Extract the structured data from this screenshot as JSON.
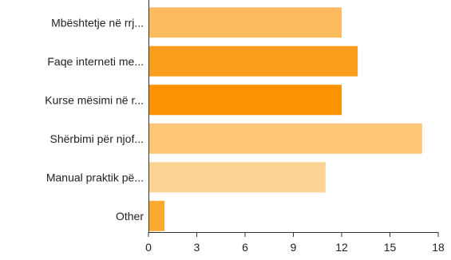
{
  "chart_data": {
    "type": "bar",
    "orientation": "horizontal",
    "categories": [
      "Mbështetje në rrj...",
      "Faqe interneti me...",
      "Kurse mësimi në r...",
      "Shërbimi për njof...",
      "Manual praktik pë...",
      "Other"
    ],
    "values": [
      12,
      13,
      12,
      17,
      11,
      1
    ],
    "colors": [
      "#fdbb5e",
      "#fd9d1e",
      "#fb9300",
      "#fec676",
      "#fdd394",
      "#fba930"
    ],
    "xlim": [
      0,
      18
    ],
    "xticks": [
      "0",
      "3",
      "6",
      "9",
      "12",
      "15",
      "18"
    ],
    "grid": false,
    "legend": "none"
  }
}
